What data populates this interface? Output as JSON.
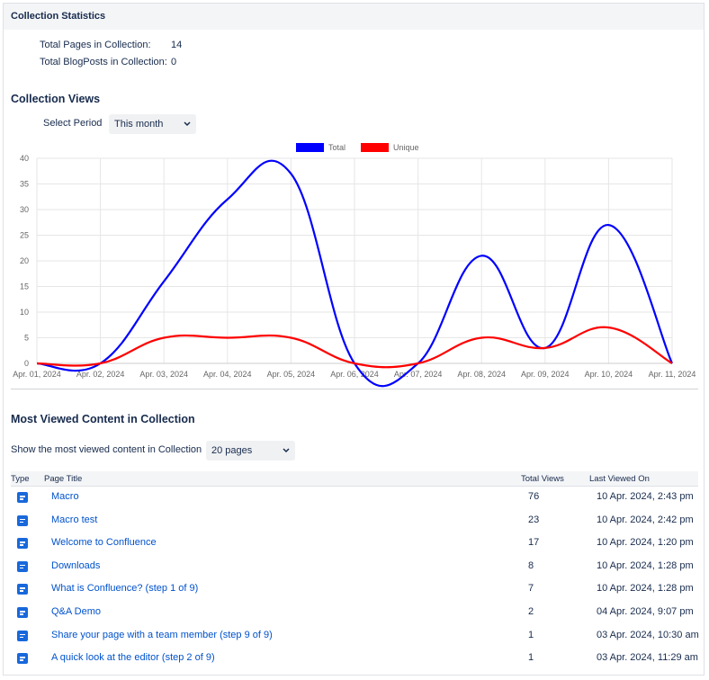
{
  "header": {
    "title": "Collection Statistics"
  },
  "stats": [
    {
      "label": "Total Pages in Collection:",
      "value": 14
    },
    {
      "label": "Total BlogPosts in Collection:",
      "value": 0
    }
  ],
  "views": {
    "title": "Collection Views",
    "period_label": "Select Period",
    "period": "This month"
  },
  "chart_data": {
    "type": "line",
    "x": [
      "Apr. 01, 2024",
      "Apr. 02, 2024",
      "Apr. 03, 2024",
      "Apr. 04, 2024",
      "Apr. 05, 2024",
      "Apr. 06, 2024",
      "Apr. 07, 2024",
      "Apr. 08, 2024",
      "Apr. 09, 2024",
      "Apr. 10, 2024",
      "Apr. 11, 2024"
    ],
    "series": [
      {
        "name": "Total",
        "color": "#0000ff",
        "values": [
          0,
          0,
          16,
          32,
          37,
          0,
          0,
          21,
          3,
          27,
          0
        ]
      },
      {
        "name": "Unique",
        "color": "#ff0000",
        "values": [
          0,
          0,
          5,
          5,
          5,
          0,
          0,
          5,
          3,
          7,
          0
        ]
      }
    ],
    "ylim": [
      0,
      40
    ],
    "yticks": [
      0,
      5,
      10,
      15,
      20,
      25,
      30,
      35,
      40
    ],
    "grid": true,
    "legend": "top"
  },
  "most_viewed": {
    "title": "Most Viewed Content in Collection",
    "show_label": "Show the most viewed content in Collection",
    "show_value": "20 pages",
    "columns": [
      "Type",
      "Page Title",
      "Total Views",
      "Last Viewed On"
    ],
    "rows": [
      {
        "title": "Macro",
        "views": 76,
        "last_viewed": "10 Apr. 2024, 2:43 pm"
      },
      {
        "title": "Macro test",
        "views": 23,
        "last_viewed": "10 Apr. 2024, 2:42 pm"
      },
      {
        "title": "Welcome to Confluence",
        "views": 17,
        "last_viewed": "10 Apr. 2024, 1:20 pm"
      },
      {
        "title": "Downloads",
        "views": 8,
        "last_viewed": "10 Apr. 2024, 1:28 pm"
      },
      {
        "title": "What is Confluence? (step 1 of 9)",
        "views": 7,
        "last_viewed": "10 Apr. 2024, 1:28 pm"
      },
      {
        "title": "Q&A Demo",
        "views": 2,
        "last_viewed": "04 Apr. 2024, 9:07 pm"
      },
      {
        "title": "Share your page with a team member (step 9 of 9)",
        "views": 1,
        "last_viewed": "03 Apr. 2024, 10:30 am"
      },
      {
        "title": "A quick look at the editor (step 2 of 9)",
        "views": 1,
        "last_viewed": "03 Apr. 2024, 11:29 am"
      }
    ]
  }
}
